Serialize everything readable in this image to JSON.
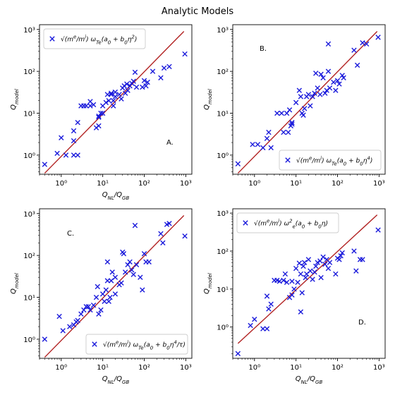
{
  "figure": {
    "title": "Analytic Models"
  },
  "colors": {
    "marker": "#1a1adb",
    "fit_line": "#b22222"
  },
  "chart_data": [
    {
      "type": "scatter",
      "panel": "A.",
      "legend": {
        "label_html": "√(m<tspan baseline-shift='super' font-size='7'>e</tspan>/m<tspan baseline-shift='super' font-size='7'>i</tspan>) ω<tspan baseline-shift='sub' font-size='7'>Te</tspan>(a<tspan baseline-shift='sub' font-size='7'>0</tspan> + b<tspan baseline-shift='sub' font-size='7'>0</tspan>η<tspan baseline-shift='super' font-size='7'>2</tspan>)",
        "position": "upper-left"
      },
      "xlabel": "Q_NL/Q_GB",
      "ylabel": "Q_model",
      "xscale": "log",
      "yscale": "log",
      "xlim": [
        0.3,
        1400
      ],
      "ylim": [
        0.35,
        1300
      ],
      "xticks": [
        1,
        10,
        100,
        1000
      ],
      "yticks": [
        1,
        10,
        100,
        1000
      ],
      "fit_line": [
        [
          0.4,
          0.37
        ],
        [
          900,
          900
        ]
      ],
      "points": [
        [
          0.4,
          0.6
        ],
        [
          0.8,
          1.1
        ],
        [
          1.0,
          2.6
        ],
        [
          1.3,
          1.0
        ],
        [
          2,
          1.0
        ],
        [
          2,
          2.2
        ],
        [
          2,
          3.8
        ],
        [
          2.5,
          1.0
        ],
        [
          2.5,
          6
        ],
        [
          3,
          15
        ],
        [
          3.5,
          15
        ],
        [
          4,
          15
        ],
        [
          5,
          15
        ],
        [
          5,
          19
        ],
        [
          6,
          16
        ],
        [
          7,
          4.5
        ],
        [
          8,
          5
        ],
        [
          8,
          8
        ],
        [
          8,
          8.5
        ],
        [
          9,
          10
        ],
        [
          10,
          15
        ],
        [
          10,
          10
        ],
        [
          12,
          18
        ],
        [
          13,
          28
        ],
        [
          14,
          20
        ],
        [
          16,
          30
        ],
        [
          16,
          28
        ],
        [
          18,
          15
        ],
        [
          18,
          20
        ],
        [
          20,
          32
        ],
        [
          20,
          25
        ],
        [
          25,
          28
        ],
        [
          28,
          22
        ],
        [
          30,
          40
        ],
        [
          33,
          45
        ],
        [
          35,
          30
        ],
        [
          38,
          50
        ],
        [
          40,
          35
        ],
        [
          45,
          45
        ],
        [
          50,
          52
        ],
        [
          55,
          58
        ],
        [
          60,
          95
        ],
        [
          65,
          42
        ],
        [
          90,
          42
        ],
        [
          100,
          60
        ],
        [
          110,
          45
        ],
        [
          120,
          55
        ],
        [
          160,
          100
        ],
        [
          250,
          70
        ],
        [
          300,
          120
        ],
        [
          400,
          130
        ],
        [
          950,
          260
        ]
      ]
    },
    {
      "type": "scatter",
      "panel": "B.",
      "legend": {
        "label_html": "√(m<tspan baseline-shift='super' font-size='7'>e</tspan>/m<tspan baseline-shift='super' font-size='7'>i</tspan>) ω<tspan baseline-shift='sub' font-size='7'>Te</tspan>(a<tspan baseline-shift='sub' font-size='7'>0</tspan> + b<tspan baseline-shift='sub' font-size='7'>0</tspan>η<tspan baseline-shift='super' font-size='7'>4</tspan>)",
        "position": "lower-right"
      },
      "xlabel": "",
      "ylabel": "Q_model",
      "xscale": "log",
      "yscale": "log",
      "xlim": [
        0.3,
        1400
      ],
      "ylim": [
        0.35,
        1300
      ],
      "xticks": [
        1,
        10,
        100,
        1000
      ],
      "yticks": [
        1,
        10,
        100,
        1000
      ],
      "fit_line": [
        [
          0.4,
          0.37
        ],
        [
          900,
          900
        ]
      ],
      "points": [
        [
          0.4,
          0.62
        ],
        [
          0.9,
          1.8
        ],
        [
          1.2,
          1.8
        ],
        [
          1.6,
          1.5
        ],
        [
          2,
          2.5
        ],
        [
          2.2,
          3.5
        ],
        [
          2.5,
          1.5
        ],
        [
          3.5,
          10
        ],
        [
          4.5,
          10
        ],
        [
          5,
          3.5
        ],
        [
          6,
          10
        ],
        [
          6.5,
          3.5
        ],
        [
          7,
          12
        ],
        [
          7.5,
          5
        ],
        [
          8,
          5.5
        ],
        [
          8,
          6
        ],
        [
          10,
          18
        ],
        [
          12,
          35
        ],
        [
          13,
          25
        ],
        [
          14,
          10
        ],
        [
          15,
          9
        ],
        [
          16,
          13
        ],
        [
          18,
          25
        ],
        [
          20,
          28
        ],
        [
          22,
          15
        ],
        [
          25,
          25
        ],
        [
          28,
          30
        ],
        [
          30,
          90
        ],
        [
          33,
          40
        ],
        [
          38,
          28
        ],
        [
          40,
          85
        ],
        [
          45,
          70
        ],
        [
          50,
          30
        ],
        [
          55,
          35
        ],
        [
          60,
          450
        ],
        [
          60,
          100
        ],
        [
          65,
          40
        ],
        [
          80,
          55
        ],
        [
          90,
          35
        ],
        [
          100,
          60
        ],
        [
          110,
          50
        ],
        [
          130,
          80
        ],
        [
          140,
          70
        ],
        [
          250,
          320
        ],
        [
          300,
          140
        ],
        [
          400,
          480
        ],
        [
          500,
          450
        ],
        [
          950,
          650
        ]
      ]
    },
    {
      "type": "scatter",
      "panel": "C.",
      "legend": {
        "label_html": "√(m<tspan baseline-shift='super' font-size='7'>e</tspan>/m<tspan baseline-shift='super' font-size='7'>i</tspan>) ω<tspan baseline-shift='sub' font-size='7'>Te</tspan>(a<tspan baseline-shift='sub' font-size='7'>0</tspan> + b<tspan baseline-shift='sub' font-size='7'>0</tspan>η<tspan baseline-shift='super' font-size='7'>4</tspan>/τ)",
        "position": "lower-right"
      },
      "xlabel": "Q_NL/Q_GB",
      "ylabel": "Q_model",
      "xscale": "log",
      "yscale": "log",
      "xlim": [
        0.3,
        1400
      ],
      "ylim": [
        0.35,
        1300
      ],
      "xticks": [
        1,
        10,
        100,
        1000
      ],
      "yticks": [
        1,
        10,
        100,
        1000
      ],
      "fit_line": [
        [
          0.4,
          0.37
        ],
        [
          900,
          900
        ]
      ],
      "points": [
        [
          0.4,
          1.0
        ],
        [
          0.9,
          3.5
        ],
        [
          1.1,
          1.6
        ],
        [
          1.6,
          2
        ],
        [
          2,
          2.2
        ],
        [
          2.3,
          2.6
        ],
        [
          2.5,
          2.8
        ],
        [
          3,
          4
        ],
        [
          3.5,
          5
        ],
        [
          4,
          6
        ],
        [
          4.5,
          6
        ],
        [
          5,
          5
        ],
        [
          6,
          6.5
        ],
        [
          7,
          10
        ],
        [
          7.5,
          18
        ],
        [
          8,
          4
        ],
        [
          9,
          5
        ],
        [
          10,
          12
        ],
        [
          11,
          8
        ],
        [
          12,
          15
        ],
        [
          13,
          25
        ],
        [
          13,
          70
        ],
        [
          14,
          8
        ],
        [
          15,
          10
        ],
        [
          16,
          25
        ],
        [
          17,
          40
        ],
        [
          20,
          12
        ],
        [
          20,
          30
        ],
        [
          25,
          20
        ],
        [
          28,
          22
        ],
        [
          30,
          120
        ],
        [
          32,
          110
        ],
        [
          35,
          40
        ],
        [
          40,
          60
        ],
        [
          45,
          70
        ],
        [
          50,
          45
        ],
        [
          55,
          35
        ],
        [
          60,
          520
        ],
        [
          65,
          60
        ],
        [
          80,
          30
        ],
        [
          90,
          15
        ],
        [
          100,
          110
        ],
        [
          110,
          70
        ],
        [
          130,
          70
        ],
        [
          250,
          330
        ],
        [
          280,
          200
        ],
        [
          350,
          550
        ],
        [
          400,
          580
        ],
        [
          950,
          290
        ]
      ]
    },
    {
      "type": "scatter",
      "panel": "D.",
      "legend": {
        "label_html": "√(m<tspan baseline-shift='super' font-size='7'>e</tspan>/m<tspan baseline-shift='super' font-size='7'>i</tspan>) ω<tspan baseline-shift='super' font-size='7'>2</tspan><tspan baseline-shift='sub' font-size='7'>e</tspan>(a<tspan baseline-shift='sub' font-size='7'>0</tspan> + b<tspan baseline-shift='sub' font-size='7'>0</tspan>η)",
        "position": "upper-left"
      },
      "xlabel": "Q_NL/Q_GB",
      "ylabel": "Q_model",
      "xscale": "log",
      "yscale": "log",
      "xlim": [
        0.3,
        1400
      ],
      "ylim": [
        0.15,
        1300
      ],
      "xticks": [
        1,
        10,
        100,
        1000
      ],
      "yticks": [
        1,
        10,
        100,
        1000
      ],
      "fit_line": [
        [
          0.4,
          0.37
        ],
        [
          900,
          900
        ]
      ],
      "points": [
        [
          0.4,
          0.2
        ],
        [
          0.8,
          1.1
        ],
        [
          1.0,
          1.6
        ],
        [
          1.6,
          0.9
        ],
        [
          2,
          0.9
        ],
        [
          2,
          6.5
        ],
        [
          2.2,
          3
        ],
        [
          2.5,
          4
        ],
        [
          3,
          17
        ],
        [
          3.5,
          17
        ],
        [
          4,
          16
        ],
        [
          5,
          17
        ],
        [
          5.5,
          25
        ],
        [
          6,
          15
        ],
        [
          7,
          6
        ],
        [
          8,
          7
        ],
        [
          8,
          16
        ],
        [
          9,
          10
        ],
        [
          10,
          35
        ],
        [
          11,
          15
        ],
        [
          12,
          48
        ],
        [
          13,
          2.5
        ],
        [
          13,
          25
        ],
        [
          14,
          8
        ],
        [
          15,
          40
        ],
        [
          16,
          50
        ],
        [
          17,
          20
        ],
        [
          18,
          25
        ],
        [
          20,
          60
        ],
        [
          22,
          30
        ],
        [
          25,
          18
        ],
        [
          28,
          28
        ],
        [
          30,
          40
        ],
        [
          33,
          50
        ],
        [
          38,
          55
        ],
        [
          40,
          20
        ],
        [
          45,
          70
        ],
        [
          50,
          45
        ],
        [
          55,
          60
        ],
        [
          60,
          35
        ],
        [
          65,
          50
        ],
        [
          90,
          25
        ],
        [
          100,
          65
        ],
        [
          110,
          60
        ],
        [
          120,
          75
        ],
        [
          130,
          90
        ],
        [
          250,
          100
        ],
        [
          280,
          30
        ],
        [
          350,
          60
        ],
        [
          400,
          60
        ],
        [
          950,
          360
        ]
      ]
    }
  ]
}
